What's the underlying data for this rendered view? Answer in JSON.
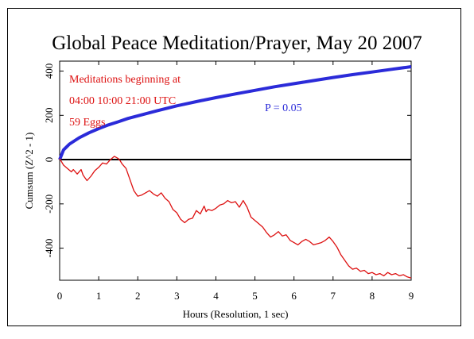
{
  "chart_data": {
    "type": "line",
    "title": "Global Peace Meditation/Prayer, May 20 2007",
    "xlabel": "Hours (Resolution, 1 sec)",
    "ylabel": "Cumsum (Z^2 - 1)",
    "xlim": [
      0,
      9
    ],
    "ylim": [
      -545,
      445
    ],
    "x_ticks": [
      0,
      1,
      2,
      3,
      4,
      5,
      6,
      7,
      8,
      9
    ],
    "y_ticks": [
      -400,
      -200,
      0,
      200,
      400
    ],
    "annotations": [
      "Meditations beginning at",
      "04:00 10:00 21:00 UTC",
      "59 Eggs"
    ],
    "series": [
      {
        "color": "#2b2bd9",
        "label": "P = 0.05",
        "points": [
          [
            0,
            0
          ],
          [
            0.1,
            44
          ],
          [
            0.25,
            70
          ],
          [
            0.5,
            99
          ],
          [
            0.75,
            121
          ],
          [
            1,
            140
          ],
          [
            1.25,
            157
          ],
          [
            1.5,
            171
          ],
          [
            1.75,
            186
          ],
          [
            2,
            198
          ],
          [
            2.5,
            221
          ],
          [
            3,
            243
          ],
          [
            3.5,
            262
          ],
          [
            4,
            280
          ],
          [
            4.5,
            297
          ],
          [
            5,
            313
          ],
          [
            5.5,
            329
          ],
          [
            6,
            343
          ],
          [
            6.5,
            357
          ],
          [
            7,
            371
          ],
          [
            7.5,
            384
          ],
          [
            8,
            396
          ],
          [
            8.5,
            408
          ],
          [
            9,
            420
          ]
        ]
      },
      {
        "color": "#dd1111",
        "points": [
          [
            0,
            5
          ],
          [
            0.1,
            -25
          ],
          [
            0.2,
            -40
          ],
          [
            0.3,
            -55
          ],
          [
            0.35,
            -45
          ],
          [
            0.45,
            -65
          ],
          [
            0.55,
            -45
          ],
          [
            0.6,
            -70
          ],
          [
            0.7,
            -95
          ],
          [
            0.8,
            -75
          ],
          [
            0.9,
            -50
          ],
          [
            1,
            -35
          ],
          [
            1.1,
            -15
          ],
          [
            1.2,
            -20
          ],
          [
            1.3,
            0
          ],
          [
            1.4,
            15
          ],
          [
            1.5,
            5
          ],
          [
            1.55,
            -5
          ],
          [
            1.6,
            -20
          ],
          [
            1.7,
            -40
          ],
          [
            1.8,
            -90
          ],
          [
            1.9,
            -140
          ],
          [
            2,
            -165
          ],
          [
            2.1,
            -160
          ],
          [
            2.2,
            -150
          ],
          [
            2.3,
            -140
          ],
          [
            2.4,
            -155
          ],
          [
            2.5,
            -165
          ],
          [
            2.6,
            -150
          ],
          [
            2.7,
            -175
          ],
          [
            2.8,
            -190
          ],
          [
            2.9,
            -225
          ],
          [
            3,
            -240
          ],
          [
            3.1,
            -270
          ],
          [
            3.2,
            -285
          ],
          [
            3.3,
            -270
          ],
          [
            3.4,
            -265
          ],
          [
            3.5,
            -230
          ],
          [
            3.6,
            -245
          ],
          [
            3.7,
            -210
          ],
          [
            3.75,
            -235
          ],
          [
            3.8,
            -225
          ],
          [
            3.9,
            -230
          ],
          [
            4,
            -220
          ],
          [
            4.1,
            -205
          ],
          [
            4.2,
            -200
          ],
          [
            4.3,
            -185
          ],
          [
            4.4,
            -195
          ],
          [
            4.5,
            -190
          ],
          [
            4.6,
            -215
          ],
          [
            4.7,
            -185
          ],
          [
            4.8,
            -215
          ],
          [
            4.9,
            -260
          ],
          [
            5,
            -275
          ],
          [
            5.1,
            -290
          ],
          [
            5.2,
            -305
          ],
          [
            5.3,
            -330
          ],
          [
            5.4,
            -350
          ],
          [
            5.5,
            -340
          ],
          [
            5.6,
            -325
          ],
          [
            5.7,
            -345
          ],
          [
            5.8,
            -340
          ],
          [
            5.9,
            -365
          ],
          [
            6,
            -375
          ],
          [
            6.1,
            -385
          ],
          [
            6.2,
            -370
          ],
          [
            6.3,
            -360
          ],
          [
            6.4,
            -370
          ],
          [
            6.5,
            -385
          ],
          [
            6.6,
            -380
          ],
          [
            6.7,
            -375
          ],
          [
            6.8,
            -365
          ],
          [
            6.9,
            -350
          ],
          [
            7,
            -370
          ],
          [
            7.1,
            -395
          ],
          [
            7.2,
            -430
          ],
          [
            7.3,
            -455
          ],
          [
            7.4,
            -480
          ],
          [
            7.5,
            -495
          ],
          [
            7.6,
            -490
          ],
          [
            7.7,
            -505
          ],
          [
            7.8,
            -500
          ],
          [
            7.9,
            -515
          ],
          [
            8,
            -510
          ],
          [
            8.1,
            -520
          ],
          [
            8.2,
            -515
          ],
          [
            8.3,
            -525
          ],
          [
            8.4,
            -510
          ],
          [
            8.5,
            -520
          ],
          [
            8.6,
            -515
          ],
          [
            8.7,
            -525
          ],
          [
            8.8,
            -520
          ],
          [
            8.9,
            -530
          ],
          [
            9,
            -535
          ]
        ]
      }
    ]
  },
  "colors": {
    "annotation": "#dd1111",
    "p_label": "#2b2bd9",
    "axis": "#000000"
  }
}
